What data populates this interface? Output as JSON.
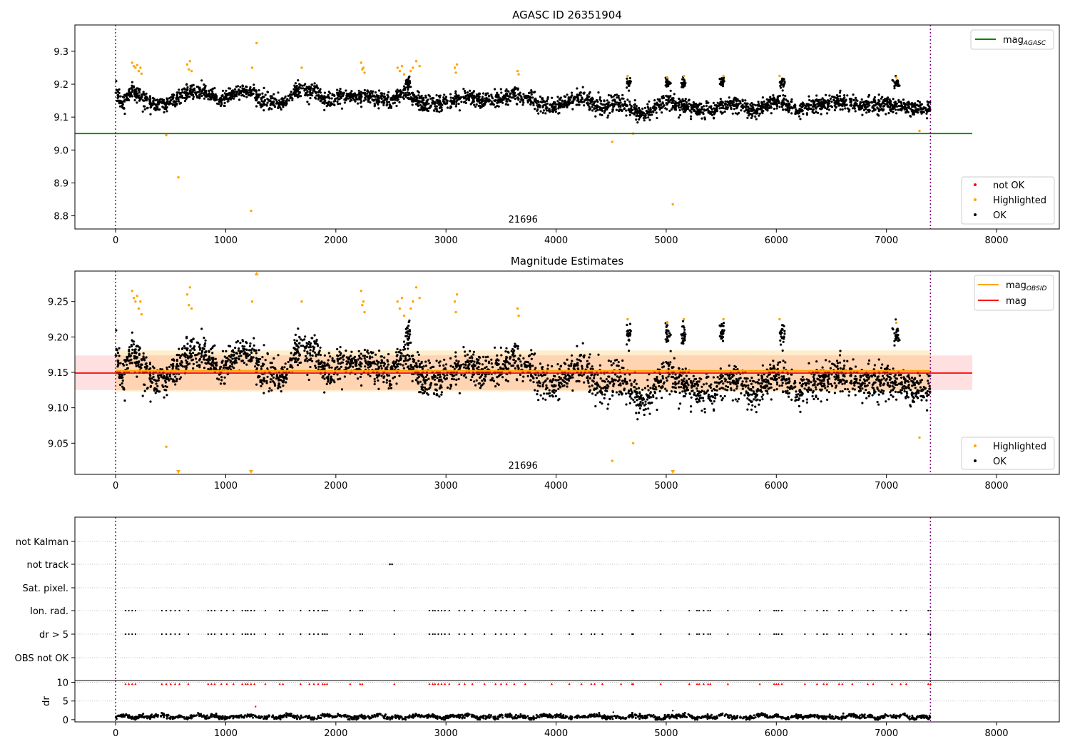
{
  "chart_data": [
    {
      "type": "scatter",
      "title": "AGASC ID 26351904",
      "xlim": [
        -370,
        8570
      ],
      "ylim": [
        8.76,
        9.38
      ],
      "x_ticks": [
        0,
        1000,
        2000,
        3000,
        4000,
        5000,
        6000,
        7000,
        8000
      ],
      "y_ticks": [
        8.8,
        8.9,
        9.0,
        9.1,
        9.2,
        9.3
      ],
      "y_tick_labels": [
        "8.8",
        "8.9",
        "9.0",
        "9.1",
        "9.2",
        "9.3"
      ],
      "annotation": "21696",
      "annotation_x": 3700,
      "vlines": [
        0,
        7400
      ],
      "hline": {
        "name": "mag",
        "subscript": "AGASC",
        "y": 9.05,
        "x_range": [
          -370,
          7780
        ],
        "color": "#008000"
      },
      "legend_lines": [
        {
          "name": "mag",
          "subscript": "AGASC",
          "color": "#008000"
        }
      ],
      "legend_points": [
        {
          "name": "not OK",
          "color": "#ff0000"
        },
        {
          "name": "Highlighted",
          "color": "#ffa500"
        },
        {
          "name": "OK",
          "color": "#000000"
        }
      ],
      "ok_trend": [
        [
          0,
          9.18
        ],
        [
          60,
          9.14
        ],
        [
          150,
          9.185
        ],
        [
          230,
          9.16
        ],
        [
          330,
          9.14
        ],
        [
          450,
          9.135
        ],
        [
          560,
          9.16
        ],
        [
          700,
          9.18
        ],
        [
          850,
          9.17
        ],
        [
          950,
          9.15
        ],
        [
          1050,
          9.17
        ],
        [
          1200,
          9.18
        ],
        [
          1350,
          9.15
        ],
        [
          1500,
          9.14
        ],
        [
          1650,
          9.18
        ],
        [
          1800,
          9.18
        ],
        [
          1900,
          9.15
        ],
        [
          2100,
          9.16
        ],
        [
          2300,
          9.16
        ],
        [
          2500,
          9.15
        ],
        [
          2600,
          9.175
        ],
        [
          2800,
          9.14
        ],
        [
          3000,
          9.14
        ],
        [
          3150,
          9.16
        ],
        [
          3400,
          9.15
        ],
        [
          3650,
          9.17
        ],
        [
          3850,
          9.14
        ],
        [
          4000,
          9.13
        ],
        [
          4200,
          9.16
        ],
        [
          4400,
          9.13
        ],
        [
          4600,
          9.14
        ],
        [
          4800,
          9.11
        ],
        [
          5000,
          9.15
        ],
        [
          5200,
          9.13
        ],
        [
          5400,
          9.12
        ],
        [
          5600,
          9.14
        ],
        [
          5800,
          9.12
        ],
        [
          6000,
          9.15
        ],
        [
          6200,
          9.12
        ],
        [
          6400,
          9.14
        ],
        [
          6600,
          9.15
        ],
        [
          6800,
          9.13
        ],
        [
          7000,
          9.14
        ],
        [
          7200,
          9.13
        ],
        [
          7400,
          9.12
        ]
      ],
      "highlighted": [
        [
          150,
          9.265
        ],
        [
          165,
          9.255
        ],
        [
          180,
          9.25
        ],
        [
          195,
          9.258
        ],
        [
          210,
          9.24
        ],
        [
          225,
          9.25
        ],
        [
          235,
          9.232
        ],
        [
          650,
          9.26
        ],
        [
          665,
          9.245
        ],
        [
          675,
          9.27
        ],
        [
          690,
          9.24
        ],
        [
          1240,
          9.25
        ],
        [
          1280,
          9.325
        ],
        [
          1690,
          9.25
        ],
        [
          2230,
          9.265
        ],
        [
          2240,
          9.245
        ],
        [
          2250,
          9.25
        ],
        [
          2260,
          9.235
        ],
        [
          2560,
          9.25
        ],
        [
          2580,
          9.24
        ],
        [
          2600,
          9.255
        ],
        [
          2620,
          9.23
        ],
        [
          2680,
          9.24
        ],
        [
          2700,
          9.25
        ],
        [
          2730,
          9.27
        ],
        [
          2760,
          9.255
        ],
        [
          3080,
          9.25
        ],
        [
          3090,
          9.235
        ],
        [
          3100,
          9.26
        ],
        [
          3650,
          9.24
        ],
        [
          3660,
          9.23
        ],
        [
          4650,
          9.225
        ],
        [
          5010,
          9.22
        ],
        [
          5160,
          9.225
        ],
        [
          5520,
          9.225
        ],
        [
          6030,
          9.225
        ],
        [
          7090,
          9.22
        ],
        [
          460,
          9.045
        ],
        [
          570,
          8.917
        ],
        [
          1230,
          8.815
        ],
        [
          4510,
          9.025
        ],
        [
          5060,
          8.835
        ],
        [
          4700,
          9.05
        ],
        [
          7300,
          9.058
        ]
      ]
    },
    {
      "type": "scatter",
      "title": "Magnitude Estimates",
      "xlim": [
        -370,
        8570
      ],
      "ylim": [
        9.006,
        9.293
      ],
      "x_ticks": [
        0,
        1000,
        2000,
        3000,
        4000,
        5000,
        6000,
        7000,
        8000
      ],
      "y_ticks": [
        9.05,
        9.1,
        9.15,
        9.2,
        9.25
      ],
      "y_tick_labels": [
        "9.05",
        "9.10",
        "9.15",
        "9.20",
        "9.25"
      ],
      "annotation": "21696",
      "annotation_x": 3700,
      "vlines": [
        0,
        7400
      ],
      "mag_line": {
        "name": "mag",
        "y": 9.149,
        "band": [
          9.125,
          9.174
        ],
        "x_range": [
          -370,
          7780
        ],
        "color": "#ff0000"
      },
      "mag_obsid_line": {
        "name": "mag",
        "subscript": "OBSID",
        "y": 9.152,
        "band": [
          9.123,
          9.181
        ],
        "x_range": [
          0,
          7400
        ],
        "color": "#ffa500"
      },
      "legend_lines": [
        {
          "name": "mag",
          "subscript": "OBSID",
          "color": "#ffa500"
        },
        {
          "name": "mag",
          "subscript": "",
          "color": "#ff0000"
        }
      ],
      "legend_points": [
        {
          "name": "Highlighted",
          "color": "#ffa500"
        },
        {
          "name": "OK",
          "color": "#000000"
        }
      ],
      "offscale_markers": [
        570,
        1230,
        1280,
        5060
      ]
    },
    {
      "type": "scatter",
      "categories": [
        "not Kalman",
        "not track",
        "Sat. pixel.",
        "Ion. rad.",
        "dr > 5",
        "OBS not OK"
      ],
      "flag_times": [
        90,
        120,
        150,
        180,
        420,
        460,
        500,
        540,
        580,
        660,
        840,
        870,
        900,
        960,
        1010,
        1070,
        1150,
        1180,
        1200,
        1230,
        1260,
        1360,
        1490,
        1520,
        1680,
        1760,
        1800,
        1840,
        1880,
        1900,
        1920,
        2130,
        2220,
        2240,
        2530,
        2850,
        2880,
        2900,
        2930,
        2960,
        2990,
        3030,
        3120,
        3170,
        3240,
        3350,
        3450,
        3500,
        3550,
        3620,
        3720,
        3960,
        4120,
        4230,
        4320,
        4350,
        4420,
        4590,
        4690,
        4700,
        4950,
        5210,
        5280,
        5300,
        5340,
        5380,
        5400,
        5560,
        5850,
        5980,
        6000,
        6020,
        6050,
        6260,
        6370,
        6430,
        6460,
        6570,
        6600,
        6690,
        6830,
        6880,
        7050,
        7130,
        7180,
        7380,
        7400
      ],
      "not_track": [
        2490,
        2510
      ],
      "xlim": [
        -370,
        8570
      ],
      "x_ticks": [
        0,
        1000,
        2000,
        3000,
        4000,
        5000,
        6000,
        7000,
        8000
      ],
      "vlines": [
        0,
        7400
      ]
    },
    {
      "type": "scatter",
      "ylabel": "dr",
      "xlim": [
        -370,
        8570
      ],
      "ylim": [
        -0.6,
        10.5
      ],
      "x_ticks": [
        0,
        1000,
        2000,
        3000,
        4000,
        5000,
        6000,
        7000,
        8000
      ],
      "y_ticks": [
        0,
        5,
        10
      ],
      "y_tick_labels": [
        "0",
        "5",
        "10"
      ],
      "vlines": [
        0,
        7400
      ],
      "dr_outliers": [
        [
          1270,
          3.5
        ],
        [
          4520,
          2.0
        ],
        [
          5060,
          2.4
        ]
      ]
    }
  ]
}
